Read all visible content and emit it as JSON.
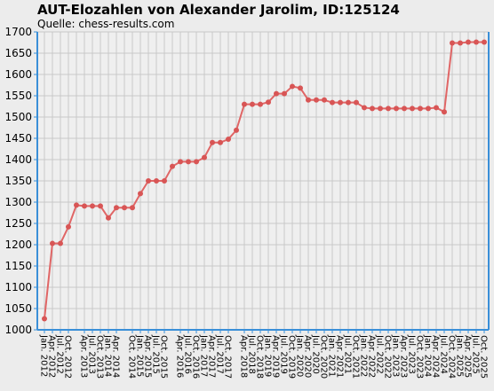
{
  "chart_data": {
    "type": "line",
    "title": "AUT-Elozahlen von Alexander Jarolim, ID:125124",
    "subtitle": "Quelle: chess-results.com",
    "xlabel": "",
    "ylabel": "",
    "ylim": [
      1000,
      1700
    ],
    "yticks": [
      1000,
      1050,
      1100,
      1150,
      1200,
      1250,
      1300,
      1350,
      1400,
      1450,
      1500,
      1550,
      1600,
      1650,
      1700
    ],
    "grid": true,
    "legend": "none",
    "colors": {
      "line": "#e06666",
      "marker": "#d85555",
      "grid": "#c8c8c8",
      "axis": "#3a8fd8",
      "plot_bg": "#efefef"
    },
    "categories": [
      "Jan. 2012",
      "Apr. 2012",
      "Jul. 2012",
      "Oct. 2012",
      "Jan. 2013",
      "Apr. 2013",
      "Jul. 2013",
      "Oct. 2013",
      "Jan. 2014",
      "Apr. 2014",
      "Jul. 2014",
      "Oct. 2014",
      "Jan. 2015",
      "Apr. 2015",
      "Jul. 2015",
      "Oct. 2015",
      "Jan. 2016",
      "Apr. 2016",
      "Jul. 2016",
      "Oct. 2016",
      "Jan. 2017",
      "Apr. 2017",
      "Jul. 2017",
      "Oct. 2017",
      "Jan. 2018",
      "Apr. 2018",
      "Jul. 2018",
      "Oct. 2018",
      "Jan. 2019",
      "Apr. 2019",
      "Jul. 2019",
      "Oct. 2019",
      "Jan. 2020",
      "Apr. 2020",
      "Jul. 2020",
      "Oct. 2020",
      "Jan. 2021",
      "Apr. 2021",
      "Jul. 2021",
      "Oct. 2021",
      "Jan. 2022",
      "Apr. 2022",
      "Jul. 2022",
      "Oct. 2022",
      "Jan. 2023",
      "Apr. 2023",
      "Jul. 2023",
      "Oct. 2023",
      "Jan. 2024",
      "Apr. 2024",
      "Jul. 2024",
      "Oct. 2024",
      "Jan. 2025",
      "Apr. 2025",
      "Jul. 2025",
      "Oct. 2025"
    ],
    "x_tick_labels": [
      "Jan. 2012",
      "Apr. 2012",
      "Jul. 2012",
      "Oct. 2012",
      "Apr. 2013",
      "Jul. 2013",
      "Oct. 2013",
      "Jan. 2014",
      "Apr. 2014",
      "Oct. 2014",
      "Jan. 2015",
      "Apr. 2015",
      "Jul. 2015",
      "Oct. 2015",
      "Apr. 2016",
      "Jul. 2016",
      "Oct. 2016",
      "Jan. 2017",
      "Apr. 2017",
      "Jul. 2017",
      "Oct. 2017",
      "Apr. 2018",
      "Jul. 2018",
      "Oct. 2018",
      "Jan. 2019",
      "Apr. 2019",
      "Jul. 2019",
      "Oct. 2019",
      "Jan. 2020",
      "Apr. 2020",
      "Jul. 2020",
      "Oct. 2020",
      "Jan. 2021",
      "Apr. 2021",
      "Jul. 2021",
      "Oct. 2021",
      "Jan. 2022",
      "Apr. 2022",
      "Jul. 2022",
      "Oct. 2022",
      "Jan. 2023",
      "Apr. 2023",
      "Jul. 2023",
      "Oct. 2023",
      "Jan. 2024",
      "Apr. 2024",
      "Jul. 2024",
      "Oct. 2024",
      "Jan. 2025",
      "Apr. 2025",
      "Jul. 2025",
      "Oct. 2025"
    ],
    "series": [
      {
        "values": [
          1026,
          1203,
          1203,
          1242,
          1293,
          1291,
          1291,
          1291,
          1263,
          1287,
          1287,
          1287,
          1320,
          1350,
          1350,
          1350,
          1384,
          1395,
          1395,
          1395,
          1405,
          1440,
          1440,
          1448,
          1469,
          1530,
          1530,
          1530,
          1535,
          1555,
          1555,
          1572,
          1568,
          1540,
          1540,
          1540,
          1534,
          1534,
          1534,
          1534,
          1522,
          1520,
          1520,
          1520,
          1520,
          1520,
          1520,
          1520,
          1520,
          1522,
          1512,
          1674,
          1674,
          1676,
          1676,
          1676
        ]
      }
    ]
  }
}
